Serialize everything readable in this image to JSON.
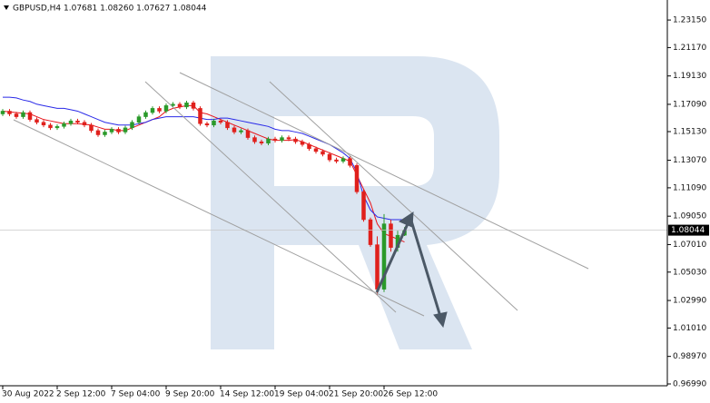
{
  "header": {
    "symbol": "GBPUSD,H4",
    "ohlc": "1.07681 1.08260 1.07627 1.08044"
  },
  "chart_data": {
    "type": "candlestick",
    "categories": [
      "30 Aug 2022",
      null,
      null,
      null,
      null,
      null,
      null,
      null,
      "2 Sep 12:00",
      null,
      null,
      null,
      null,
      null,
      null,
      null,
      "7 Sep 04:00",
      null,
      null,
      null,
      null,
      null,
      null,
      null,
      "9 Sep 20:00",
      null,
      null,
      null,
      null,
      null,
      null,
      null,
      "14 Sep 12:00",
      null,
      null,
      null,
      null,
      null,
      null,
      null,
      "19 Sep 04:00",
      null,
      null,
      null,
      null,
      null,
      null,
      null,
      "21 Sep 20:00",
      null,
      null,
      null,
      null,
      null,
      null,
      null,
      "26 Sep 12:00",
      null,
      null,
      null
    ],
    "open": [
      1.164,
      1.166,
      1.164,
      1.162,
      1.165,
      1.16,
      1.158,
      1.156,
      1.154,
      1.155,
      1.157,
      1.159,
      1.158,
      1.156,
      1.152,
      1.149,
      1.151,
      1.153,
      1.151,
      1.154,
      1.158,
      1.162,
      1.165,
      1.168,
      1.166,
      1.17,
      1.171,
      1.169,
      1.172,
      1.168,
      1.157,
      1.156,
      1.159,
      1.158,
      1.154,
      1.151,
      1.152,
      1.147,
      1.144,
      1.143,
      1.146,
      1.145,
      1.147,
      1.146,
      1.144,
      1.142,
      1.139,
      1.137,
      1.135,
      1.131,
      1.13,
      1.132,
      1.127,
      1.108,
      1.088,
      1.07,
      1.038,
      1.085,
      1.068,
      1.07681
    ],
    "high": [
      1.1675,
      1.1675,
      1.1655,
      1.1665,
      1.1665,
      1.1615,
      1.1595,
      1.1575,
      1.1565,
      1.1585,
      1.1605,
      1.1605,
      1.1595,
      1.1575,
      1.1535,
      1.1525,
      1.1545,
      1.1545,
      1.1555,
      1.1595,
      1.1635,
      1.1665,
      1.1695,
      1.1695,
      1.1715,
      1.1725,
      1.1725,
      1.1735,
      1.1735,
      1.1695,
      1.1585,
      1.1605,
      1.1605,
      1.1595,
      1.1555,
      1.1535,
      1.1535,
      1.1485,
      1.1455,
      1.1475,
      1.1475,
      1.1485,
      1.1485,
      1.1475,
      1.1455,
      1.1435,
      1.1405,
      1.1385,
      1.1365,
      1.1325,
      1.1335,
      1.1335,
      1.1285,
      1.1095,
      1.0895,
      1.076,
      1.092,
      1.088,
      1.08,
      1.0826
    ],
    "low": [
      1.1625,
      1.1625,
      1.1605,
      1.1605,
      1.1585,
      1.1565,
      1.1545,
      1.1525,
      1.1525,
      1.1535,
      1.1555,
      1.1565,
      1.1545,
      1.1505,
      1.1475,
      1.1475,
      1.1495,
      1.1495,
      1.1495,
      1.1525,
      1.1565,
      1.1605,
      1.1635,
      1.1645,
      1.1645,
      1.1685,
      1.1675,
      1.1675,
      1.1665,
      1.1555,
      1.1545,
      1.1545,
      1.1565,
      1.1525,
      1.1495,
      1.1495,
      1.1455,
      1.1425,
      1.1415,
      1.1415,
      1.1435,
      1.1435,
      1.1445,
      1.1425,
      1.1405,
      1.1375,
      1.1355,
      1.1335,
      1.1295,
      1.1285,
      1.1285,
      1.1255,
      1.1065,
      1.0865,
      1.0685,
      1.034,
      1.036,
      1.065,
      1.065,
      1.07627
    ],
    "close": [
      1.166,
      1.164,
      1.162,
      1.165,
      1.16,
      1.158,
      1.156,
      1.154,
      1.155,
      1.157,
      1.159,
      1.158,
      1.156,
      1.152,
      1.149,
      1.151,
      1.153,
      1.151,
      1.154,
      1.158,
      1.162,
      1.165,
      1.168,
      1.166,
      1.17,
      1.171,
      1.169,
      1.172,
      1.168,
      1.157,
      1.156,
      1.159,
      1.158,
      1.154,
      1.151,
      1.152,
      1.147,
      1.144,
      1.143,
      1.146,
      1.145,
      1.147,
      1.146,
      1.144,
      1.142,
      1.139,
      1.137,
      1.135,
      1.131,
      1.13,
      1.132,
      1.127,
      1.108,
      1.088,
      1.07,
      1.038,
      1.085,
      1.068,
      1.0768,
      1.08044
    ],
    "up_color": "#2a9a2a",
    "down_color": "#e0201c",
    "lines": [
      {
        "color": "#e8141b",
        "values": [
          1.166,
          1.1655,
          1.165,
          1.1645,
          1.164,
          1.162,
          1.16,
          1.159,
          1.158,
          1.157,
          1.157,
          1.157,
          1.1565,
          1.156,
          1.1545,
          1.153,
          1.153,
          1.152,
          1.152,
          1.154,
          1.156,
          1.158,
          1.16,
          1.162,
          1.166,
          1.168,
          1.169,
          1.17,
          1.17,
          1.165,
          1.164,
          1.162,
          1.16,
          1.158,
          1.156,
          1.154,
          1.152,
          1.15,
          1.148,
          1.146,
          1.145,
          1.145,
          1.145,
          1.1455,
          1.144,
          1.142,
          1.14,
          1.138,
          1.136,
          1.134,
          1.132,
          1.13,
          1.12,
          1.11,
          1.1,
          1.085,
          1.078,
          1.076,
          1.074,
          1.072
        ]
      },
      {
        "color": "#2a2ae8",
        "values": [
          1.176,
          1.176,
          1.1755,
          1.174,
          1.173,
          1.171,
          1.17,
          1.169,
          1.168,
          1.168,
          1.167,
          1.166,
          1.164,
          1.162,
          1.16,
          1.158,
          1.157,
          1.156,
          1.156,
          1.156,
          1.157,
          1.158,
          1.16,
          1.161,
          1.162,
          1.162,
          1.162,
          1.162,
          1.162,
          1.161,
          1.16,
          1.16,
          1.161,
          1.161,
          1.16,
          1.159,
          1.158,
          1.157,
          1.156,
          1.155,
          1.153,
          1.152,
          1.152,
          1.151,
          1.15,
          1.148,
          1.146,
          1.144,
          1.142,
          1.139,
          1.136,
          1.132,
          1.122,
          1.105,
          1.095,
          1.09,
          1.089,
          1.088,
          1.088,
          1.088
        ]
      }
    ],
    "ylim": [
      0.9686,
      1.2459
    ],
    "yticks": [
      {
        "value": 1.2315,
        "label": "1.23150"
      },
      {
        "value": 1.2117,
        "label": "1.21170"
      },
      {
        "value": 1.1913,
        "label": "1.19130"
      },
      {
        "value": 1.1709,
        "label": "1.17090"
      },
      {
        "value": 1.1513,
        "label": "1.15130"
      },
      {
        "value": 1.1307,
        "label": "1.13070"
      },
      {
        "value": 1.1109,
        "label": "1.11090"
      },
      {
        "value": 1.0905,
        "label": "1.09050"
      },
      {
        "value": 1.0701,
        "label": "1.07010"
      },
      {
        "value": 1.0503,
        "label": "1.05030"
      },
      {
        "value": 1.0299,
        "label": "1.02990"
      },
      {
        "value": 1.0101,
        "label": "1.01010"
      },
      {
        "value": 0.9897,
        "label": "0.98970"
      },
      {
        "value": 0.9699,
        "label": "0.96990"
      }
    ]
  }
}
